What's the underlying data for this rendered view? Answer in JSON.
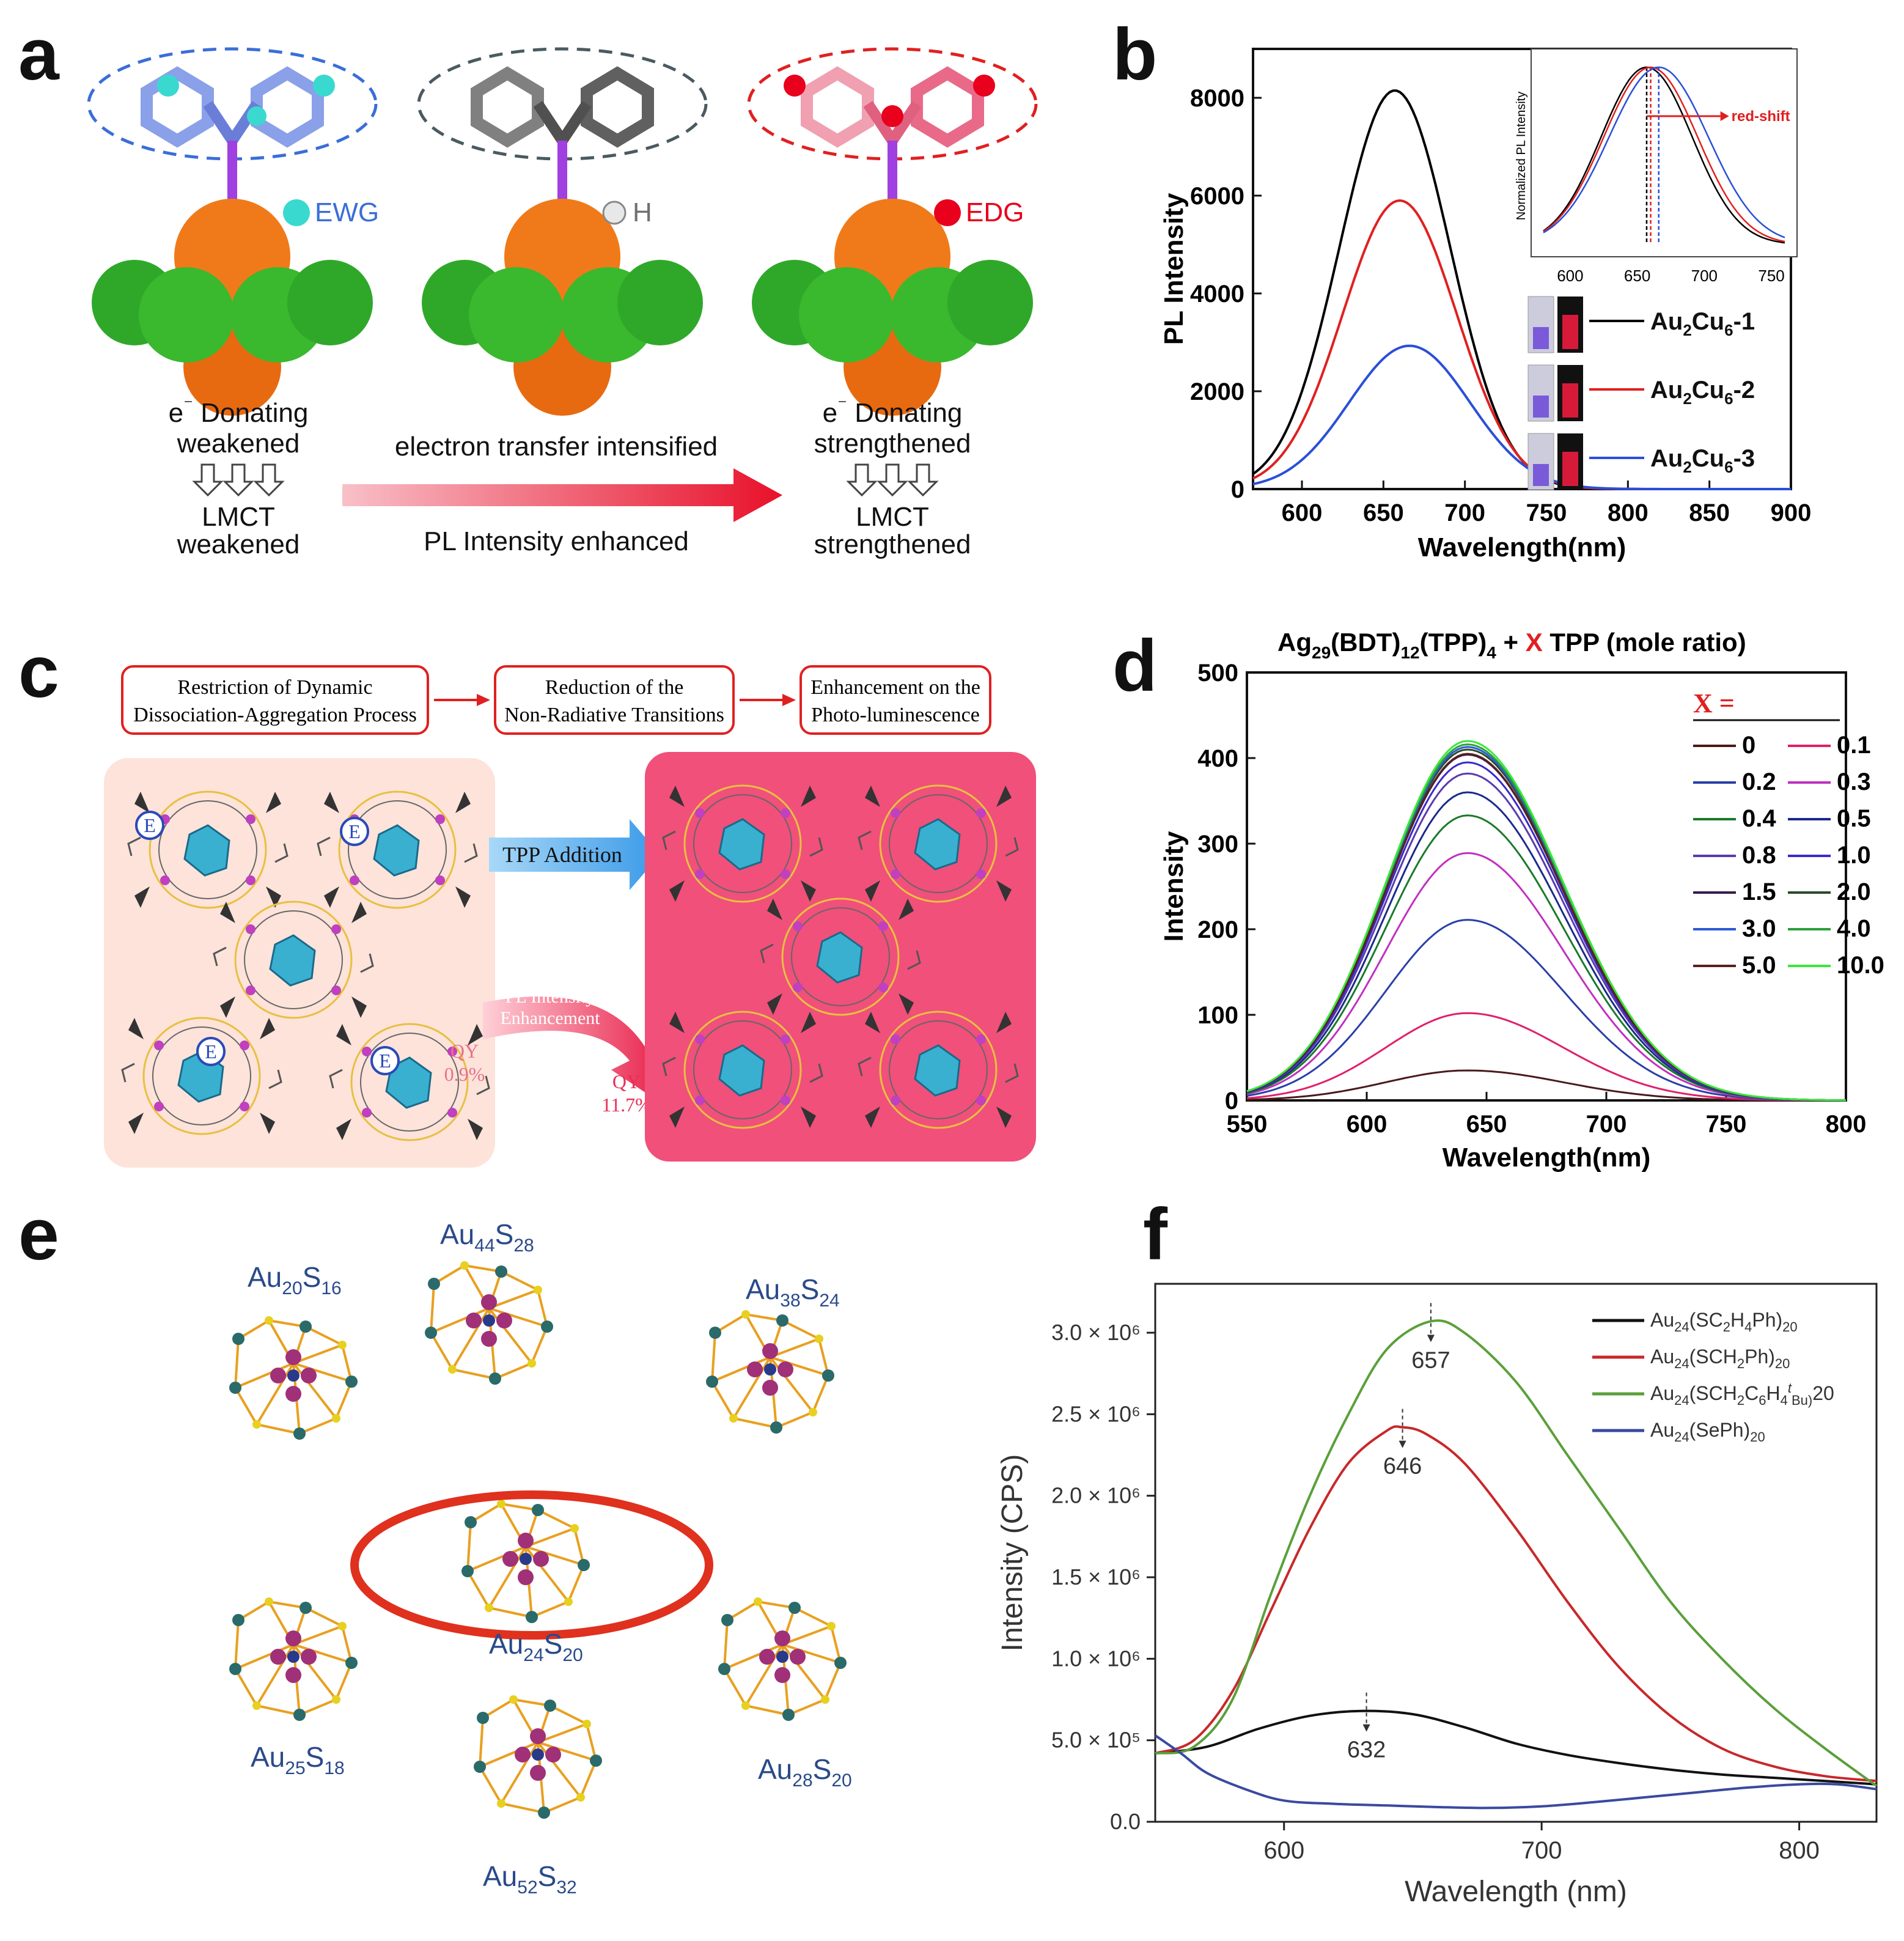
{
  "panels": {
    "a": {
      "label": "a",
      "substituents": [
        "EWG",
        "H",
        "EDG"
      ],
      "left_caption": [
        "e",
        "⁻",
        " Donating",
        "weakened",
        "LMCT",
        "weakened"
      ],
      "right_caption": [
        "e",
        "⁻",
        " Donating",
        "strengthened",
        "LMCT",
        "strengthened"
      ],
      "arrow_top": "electron transfer intensified",
      "arrow_bottom": "PL Intensity enhanced",
      "colors": {
        "ewg": "#3ad9d0",
        "h": "#f0f0f0",
        "edg": "#e8001c",
        "orange": "#f07a1a",
        "green": "#2fa82a"
      }
    },
    "b": {
      "label": "b",
      "inset_ylabel": "Normalized PL Intensity",
      "inset_annotation": "red-shift"
    },
    "c": {
      "label": "c",
      "steps": [
        "Restriction of Dynamic",
        "Dissociation-Aggregation Process",
        "Reduction of the",
        "Non-Radiative Transitions",
        "Enhancement on the",
        "Photo-luminescence"
      ],
      "addition": "TPP Addition",
      "pl_enh": [
        "PL Intensity",
        "Enhancement"
      ],
      "qy_left": [
        "QY",
        "0.9%"
      ],
      "qy_right": [
        "QY",
        "11.7%"
      ],
      "e_symbol": "E"
    },
    "d": {
      "label": "d"
    },
    "e": {
      "label": "e",
      "clusters": [
        {
          "base": "Au",
          "n1": "20",
          "el": "S",
          "n2": "16"
        },
        {
          "base": "Au",
          "n1": "44",
          "el": "S",
          "n2": "28"
        },
        {
          "base": "Au",
          "n1": "38",
          "el": "S",
          "n2": "24"
        },
        {
          "base": "Au",
          "n1": "24",
          "el": "S",
          "n2": "20"
        },
        {
          "base": "Au",
          "n1": "25",
          "el": "S",
          "n2": "18"
        },
        {
          "base": "Au",
          "n1": "28",
          "el": "S",
          "n2": "20"
        },
        {
          "base": "Au",
          "n1": "52",
          "el": "S",
          "n2": "32"
        }
      ]
    },
    "f": {
      "label": "f"
    }
  },
  "chart_data": [
    {
      "panel": "b",
      "type": "line",
      "xlabel": "Wavelength(nm)",
      "ylabel": "PL Intensity",
      "xlim": [
        570,
        900
      ],
      "ylim": [
        0,
        9000
      ],
      "xticks": [
        600,
        650,
        700,
        750,
        800,
        850,
        900
      ],
      "yticks": [
        0,
        2000,
        4000,
        6000,
        8000
      ],
      "series": [
        {
          "name_parts": [
            "Au",
            "2",
            "Cu",
            "6",
            "-1"
          ],
          "color": "#000000",
          "peak_x": 657,
          "peak_y": 8150,
          "width": 34
        },
        {
          "name_parts": [
            "Au",
            "2",
            "Cu",
            "6",
            "-2"
          ],
          "color": "#e02020",
          "peak_x": 660,
          "peak_y": 5900,
          "width": 35
        },
        {
          "name_parts": [
            "Au",
            "2",
            "Cu",
            "6",
            "-3"
          ],
          "color": "#2a4fd8",
          "peak_x": 666,
          "peak_y": 2930,
          "width": 37
        }
      ],
      "inset": {
        "ylabel": "Normalized PL Intensity",
        "xlim": [
          580,
          760
        ],
        "xticks": [
          600,
          650,
          700,
          750
        ],
        "annotation": "red-shift",
        "peaks": [
          657,
          660,
          666
        ]
      }
    },
    {
      "panel": "d",
      "type": "line",
      "title_parts": [
        "Ag",
        "29",
        "(BDT)",
        "12",
        "(TPP)",
        "4",
        " + ",
        "X",
        " TPP (mole ratio)"
      ],
      "xlabel": "Wavelength(nm)",
      "ylabel": "Intensity",
      "xlim": [
        550,
        800
      ],
      "ylim": [
        0,
        500
      ],
      "xticks": [
        550,
        600,
        650,
        700,
        750,
        800
      ],
      "yticks": [
        0,
        100,
        200,
        300,
        400,
        500
      ],
      "legend_title": "X =",
      "peak_x": 642,
      "series": [
        {
          "name": "0",
          "value": 35,
          "color": "#4a1a1a"
        },
        {
          "name": "0.1",
          "value": 102,
          "color": "#e0206a"
        },
        {
          "name": "0.2",
          "value": 211,
          "color": "#2a3fa8"
        },
        {
          "name": "0.3",
          "value": 289,
          "color": "#c030c0"
        },
        {
          "name": "0.4",
          "value": 333,
          "color": "#1a7a2a"
        },
        {
          "name": "0.5",
          "value": 360,
          "color": "#1a2a8a"
        },
        {
          "name": "0.8",
          "value": 382,
          "color": "#5a3ab0"
        },
        {
          "name": "1.0",
          "value": 395,
          "color": "#3a2ac8"
        },
        {
          "name": "1.5",
          "value": 404,
          "color": "#3a1a4a"
        },
        {
          "name": "2.0",
          "value": 410,
          "color": "#2a4a2a"
        },
        {
          "name": "3.0",
          "value": 413,
          "color": "#2a5ad8"
        },
        {
          "name": "4.0",
          "value": 416,
          "color": "#2aa03a"
        },
        {
          "name": "5.0",
          "value": 405,
          "color": "#5a2020"
        },
        {
          "name": "10.0",
          "value": 420,
          "color": "#3ae83a"
        }
      ]
    },
    {
      "panel": "f",
      "type": "line",
      "xlabel": "Wavelength (nm)",
      "ylabel": "Intensity (CPS)",
      "xlim": [
        550,
        830
      ],
      "ylim": [
        0,
        3300000
      ],
      "xticks": [
        600,
        700,
        800
      ],
      "yticks": [
        {
          "value": 0,
          "label": "0.0"
        },
        {
          "value": 500000,
          "label": "5.0 × 10⁵"
        },
        {
          "value": 1000000,
          "label": "1.0 × 10⁶"
        },
        {
          "value": 1500000,
          "label": "1.5 × 10⁶"
        },
        {
          "value": 2000000,
          "label": "2.0 × 10⁶"
        },
        {
          "value": 2500000,
          "label": "2.5 × 10⁶"
        },
        {
          "value": 3000000,
          "label": "3.0 × 10⁶"
        }
      ],
      "series": [
        {
          "name": "Au24(SC2H4Ph)20",
          "color": "#111111",
          "x": [
            550,
            570,
            590,
            610,
            630,
            650,
            670,
            690,
            710,
            730,
            750,
            770,
            790,
            810,
            830
          ],
          "y": [
            420000,
            460000,
            570000,
            650000,
            680000,
            660000,
            580000,
            480000,
            410000,
            360000,
            320000,
            290000,
            270000,
            250000,
            230000
          ]
        },
        {
          "name": "Au24(SCH2Ph)20",
          "color": "#c8282a",
          "x": [
            550,
            565,
            580,
            595,
            610,
            625,
            640,
            646,
            655,
            670,
            690,
            710,
            730,
            750,
            770,
            790,
            810,
            830
          ],
          "y": [
            420000,
            500000,
            800000,
            1300000,
            1800000,
            2200000,
            2400000,
            2420000,
            2380000,
            2200000,
            1800000,
            1350000,
            950000,
            650000,
            450000,
            340000,
            280000,
            250000
          ]
        },
        {
          "name": "Au24(SCH2C6H4tBu)20",
          "color": "#5aa03a",
          "x": [
            550,
            565,
            580,
            595,
            610,
            625,
            640,
            657,
            670,
            690,
            710,
            730,
            750,
            770,
            790,
            810,
            830
          ],
          "y": [
            420000,
            460000,
            750000,
            1400000,
            2000000,
            2500000,
            2900000,
            3070000,
            3000000,
            2700000,
            2250000,
            1800000,
            1350000,
            1000000,
            700000,
            450000,
            220000
          ]
        },
        {
          "name": "Au24(SePh)20",
          "color": "#3a4aa0",
          "x": [
            550,
            560,
            570,
            585,
            600,
            620,
            640,
            660,
            680,
            700,
            720,
            740,
            760,
            780,
            800,
            815,
            830
          ],
          "y": [
            530000,
            420000,
            300000,
            200000,
            130000,
            110000,
            100000,
            90000,
            85000,
            95000,
            120000,
            150000,
            180000,
            210000,
            230000,
            230000,
            200000
          ]
        }
      ],
      "legend": [
        [
          "Au",
          "24",
          "(SC",
          "2",
          "H",
          "4",
          "Ph)",
          "20"
        ],
        [
          "Au",
          "24",
          "(SCH",
          "2",
          "Ph)",
          "20"
        ],
        [
          "Au",
          "24",
          "(SCH",
          "2",
          "C",
          "6",
          "H",
          "4",
          "t",
          "Bu)",
          "20"
        ],
        [
          "Au",
          "24",
          "(SePh)",
          "20"
        ]
      ],
      "peak_labels": [
        {
          "x": 657,
          "y": 3070000,
          "text": "657"
        },
        {
          "x": 646,
          "y": 2420000,
          "text": "646"
        },
        {
          "x": 632,
          "y": 680000,
          "text": "632"
        }
      ]
    }
  ]
}
